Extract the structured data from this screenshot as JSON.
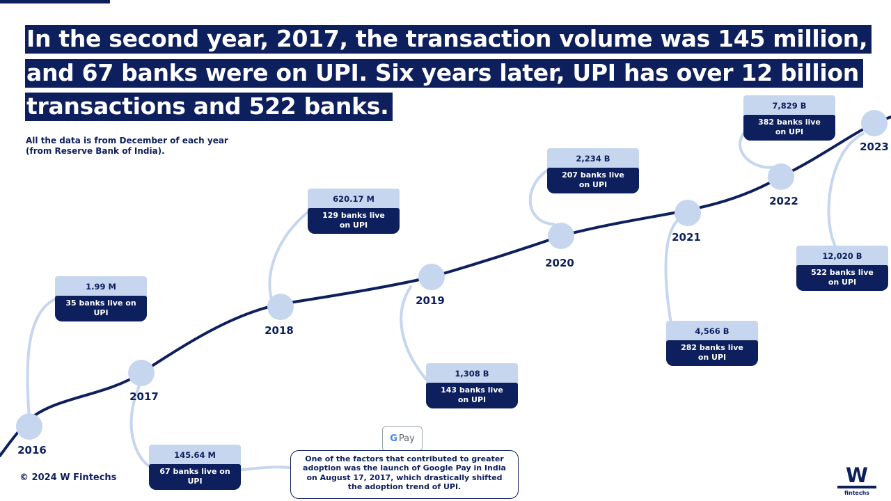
{
  "header": {
    "title": "In the second year, 2017, the transaction volume was 145 million, and 67 banks were on UPI. Six years later, UPI has over 12 billion transactions and 522 banks.",
    "subtitle": "All the data is from December of each year (from Reserve Bank of India)."
  },
  "chart_data": {
    "type": "line",
    "x": [
      "2016",
      "2017",
      "2018",
      "2019",
      "2020",
      "2021",
      "2022",
      "2023"
    ],
    "series": [
      {
        "values": [
          "1.99 M",
          "145.64 M",
          "620.17 M",
          "1,308 B",
          "2,234 B",
          "4,566 B",
          "7,829 B",
          "12,020 B"
        ]
      },
      {
        "values": [
          "35 banks live on UPI",
          "67 banks live on UPI",
          "129 banks live on UPI",
          "143 banks live on UPI",
          "207 banks live on UPI",
          "282 banks live on UPI",
          "382 banks live on UPI",
          "522 banks live on UPI"
        ]
      }
    ],
    "annotations": []
  },
  "points": [
    {
      "year": "2016",
      "volume": "1.99 M",
      "banks": "35 banks live on UPI"
    },
    {
      "year": "2017",
      "volume": "145.64 M",
      "banks": "67 banks live on UPI"
    },
    {
      "year": "2018",
      "volume": "620.17 M",
      "banks": "129 banks live on UPI"
    },
    {
      "year": "2019",
      "volume": "1,308 B",
      "banks": "143 banks live on UPI"
    },
    {
      "year": "2020",
      "volume": "2,234 B",
      "banks": "207 banks live on UPI"
    },
    {
      "year": "2021",
      "volume": "4,566 B",
      "banks": "282 banks live on UPI"
    },
    {
      "year": "2022",
      "volume": "7,829 B",
      "banks": "382 banks live on UPI"
    },
    {
      "year": "2023",
      "volume": "12,020 B",
      "banks": "522 banks live on UPI"
    }
  ],
  "note": {
    "text": "One of the factors that contributed to greater adoption was the launch of Google Pay in India on August 17, 2017, which drastically shifted the adoption trend of UPI.",
    "badge": "Pay"
  },
  "footer": {
    "copyright": "© 2024 W Fintechs"
  },
  "logo": {
    "mark": "W",
    "text": "fintechs"
  },
  "colors": {
    "navy": "#0d1f5c",
    "light": "#c5d6ee",
    "connector": "#c5d6ee"
  }
}
